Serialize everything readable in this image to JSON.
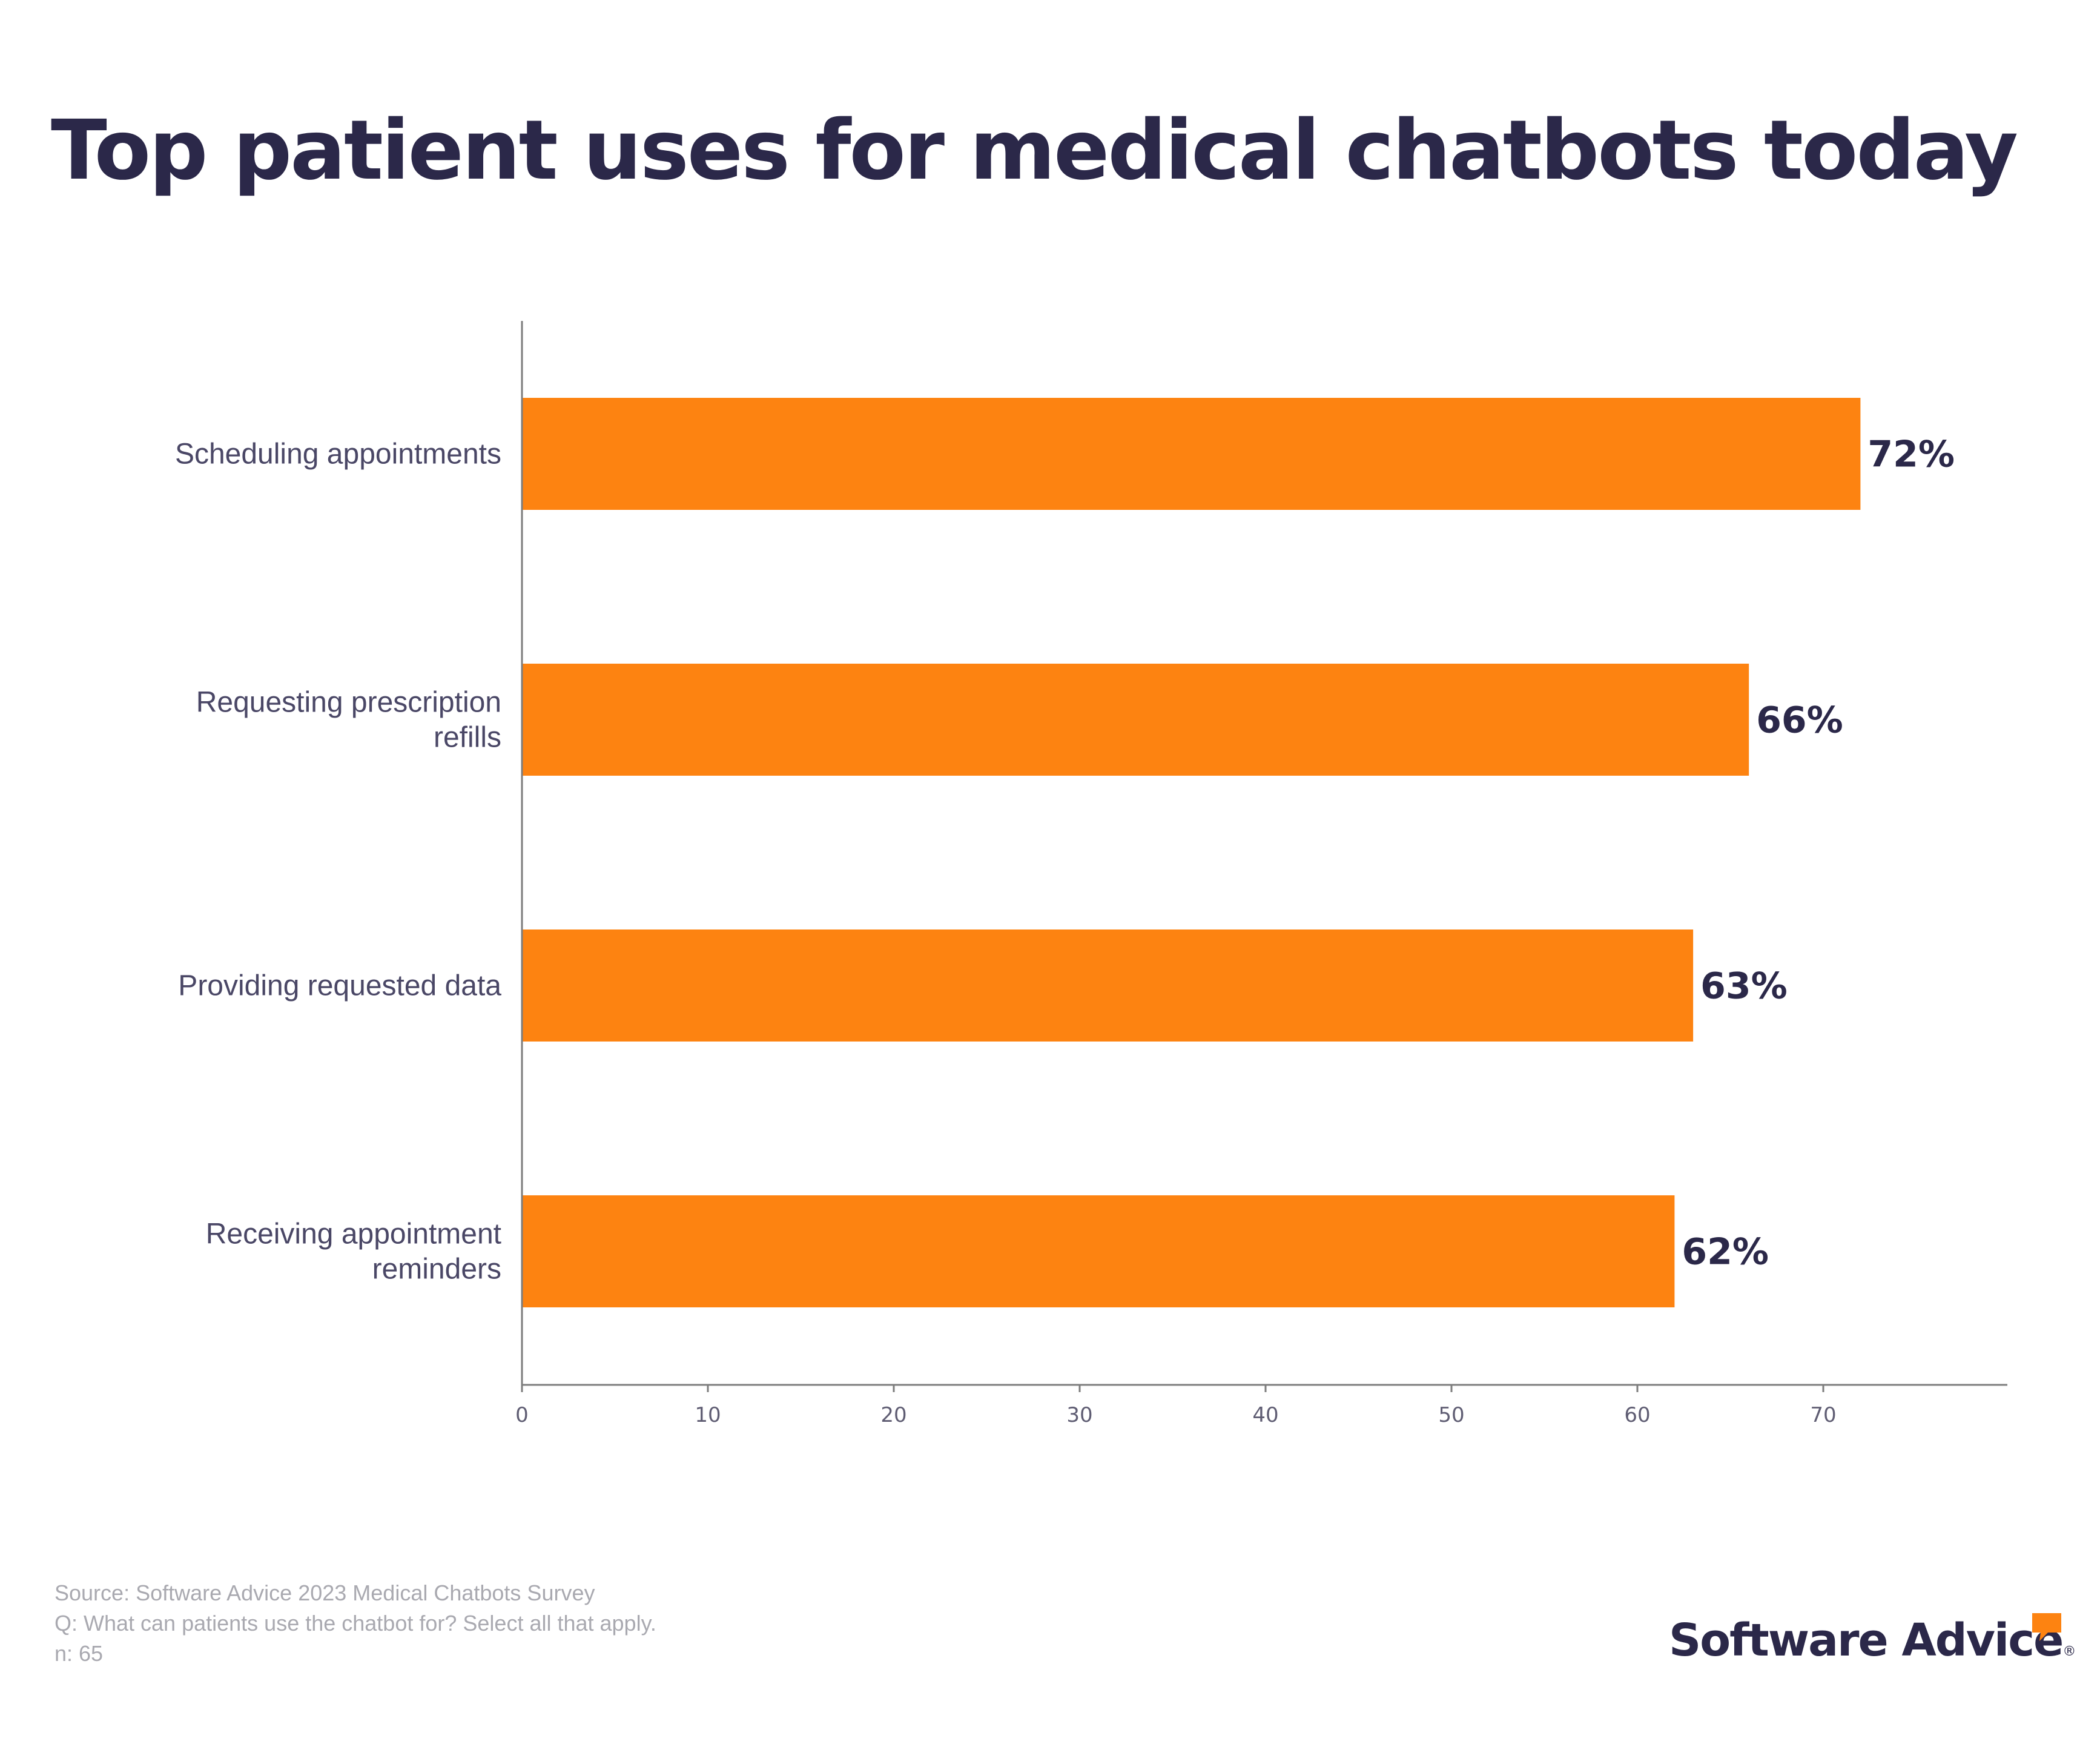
{
  "title": "Top patient uses for medical chatbots today",
  "chart_data": {
    "type": "bar",
    "orientation": "horizontal",
    "categories": [
      [
        "Scheduling appointments"
      ],
      [
        "Requesting prescription",
        "refills"
      ],
      [
        "Providing requested data"
      ],
      [
        "Receiving appointment",
        "reminders"
      ]
    ],
    "values": [
      72,
      66,
      63,
      62
    ],
    "value_labels": [
      "72%",
      "66%",
      "63%",
      "62%"
    ],
    "xlim": [
      0,
      80
    ],
    "xticks": [
      0,
      10,
      20,
      30,
      40,
      50,
      60,
      70
    ],
    "xlabel": "",
    "ylabel": "",
    "grid": false,
    "bar_color": "#fd8311",
    "axis_color": "#7d7d7d"
  },
  "footer": {
    "source": "Source: Software Advice 2023 Medical Chatbots Survey",
    "question": "Q: What can patients use the chatbot for? Select all that apply.",
    "sample": "n: 65"
  },
  "logo": {
    "text": "Software Advice",
    "mark": "®",
    "bubble_color": "#fd8311"
  },
  "colors": {
    "title": "#2b2849",
    "bar": "#fd8311",
    "footer_text": "#a9a9b0"
  }
}
